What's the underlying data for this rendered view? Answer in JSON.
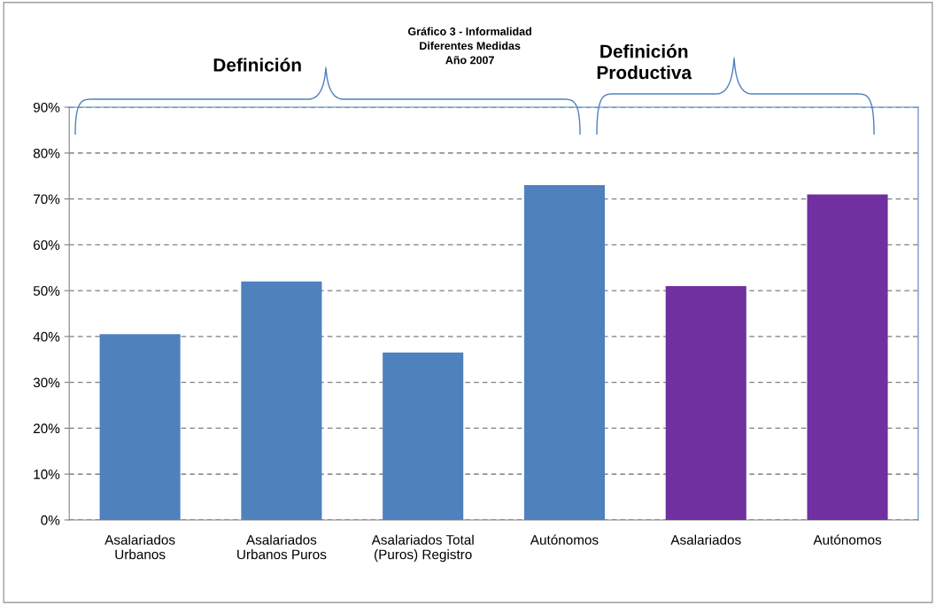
{
  "chart_data": {
    "type": "bar",
    "title": "Gráfico 3 - Informalidad\nDiferentes Medidas\nAño 2007",
    "categories": [
      "Asalariados\nUrbanos",
      "Asalariados\nUrbanos Puros",
      "Asalariados Total\n(Puros) Registro",
      "Autónomos",
      "Asalariados",
      "Autónomos"
    ],
    "values": [
      40.5,
      52,
      36.5,
      73,
      51,
      71
    ],
    "colors": [
      "#4f81bd",
      "#4f81bd",
      "#4f81bd",
      "#4f81bd",
      "#7030a0",
      "#7030a0"
    ],
    "ylim": [
      0,
      90
    ],
    "yticks": [
      {
        "value": 0,
        "label": "0%"
      },
      {
        "value": 10,
        "label": "10%"
      },
      {
        "value": 20,
        "label": "20%"
      },
      {
        "value": 30,
        "label": "30%"
      },
      {
        "value": 40,
        "label": "40%"
      },
      {
        "value": 50,
        "label": "50%"
      },
      {
        "value": 60,
        "label": "60%"
      },
      {
        "value": 70,
        "label": "70%"
      },
      {
        "value": 80,
        "label": "80%"
      },
      {
        "value": 90,
        "label": "90%"
      }
    ],
    "grid": "y",
    "annotations": [
      "Definición",
      "Definición\nProductiva"
    ]
  }
}
